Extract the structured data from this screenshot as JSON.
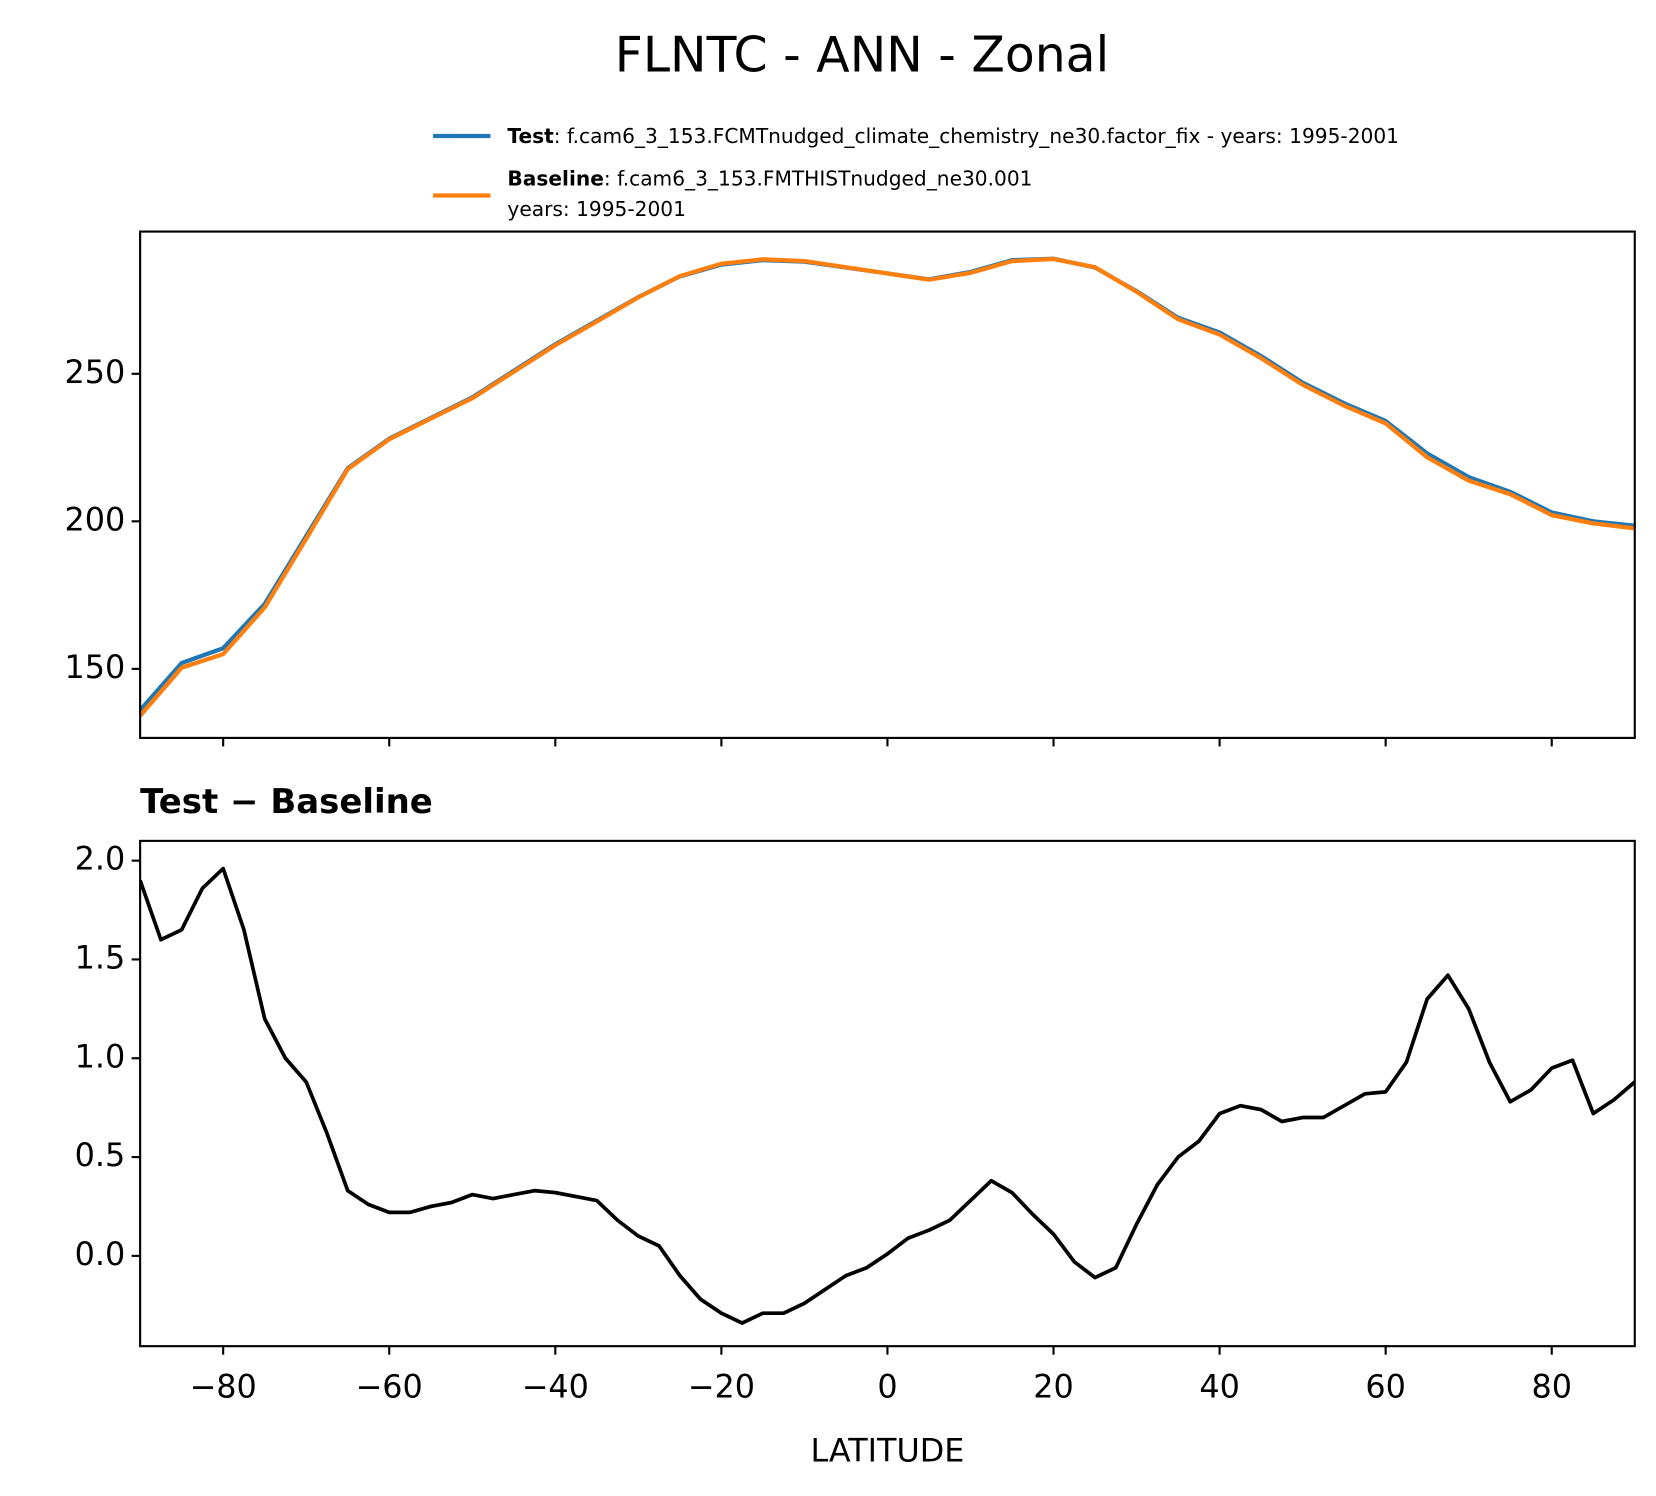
{
  "chart_data": [
    {
      "type": "line",
      "title": "FLNTC - ANN - Zonal",
      "x": [
        -90,
        -85,
        -80,
        -75,
        -70,
        -65,
        -60,
        -55,
        -50,
        -45,
        -40,
        -35,
        -30,
        -25,
        -20,
        -15,
        -10,
        -5,
        0,
        5,
        10,
        15,
        20,
        25,
        30,
        35,
        40,
        45,
        50,
        55,
        60,
        65,
        70,
        75,
        80,
        85,
        90
      ],
      "series": [
        {
          "name": "Test",
          "description": [
            ": f.cam6_3_153.FCMTnudged_climate_chemistry_ne30.factor_fix - years: 1995-2001"
          ],
          "color": "#1f77b4",
          "values": [
            136,
            152,
            157,
            172,
            195,
            218,
            228,
            235,
            242,
            251,
            260,
            268,
            276,
            283,
            287,
            288.5,
            288,
            286,
            284,
            282,
            284.5,
            288.5,
            289,
            286,
            278,
            269,
            264,
            256,
            247,
            240,
            234,
            223,
            215,
            210,
            203,
            200,
            198.5
          ]
        },
        {
          "name": "Baseline",
          "description": [
            ": f.cam6_3_153.FMTHISTnudged_ne30.001",
            "years: 1995-2001"
          ],
          "color": "#ff7f0e",
          "values": [
            134.1,
            150.4,
            155.0,
            170.8,
            194.1,
            217.7,
            227.8,
            234.8,
            241.7,
            250.7,
            259.7,
            267.7,
            275.9,
            283.1,
            287.3,
            288.8,
            288.2,
            286.1,
            284.0,
            281.9,
            284.2,
            288.2,
            288.9,
            286.1,
            277.8,
            268.5,
            263.3,
            255.3,
            246.3,
            239.2,
            233.2,
            221.7,
            213.8,
            209.2,
            202.1,
            199.3,
            197.6
          ]
        }
      ],
      "xlim": [
        -90,
        90
      ],
      "xticks": [
        -80,
        -60,
        -40,
        -20,
        0,
        20,
        40,
        60,
        80
      ],
      "ylim": [
        126.6,
        298.2
      ],
      "yticks": [
        150,
        200,
        250
      ]
    },
    {
      "type": "line",
      "subtitle": "Test − Baseline",
      "xlabel": "LATITUDE",
      "color": "#000000",
      "x": [
        -90,
        -87.5,
        -85,
        -82.5,
        -80,
        -77.5,
        -75,
        -72.5,
        -70,
        -67.5,
        -65,
        -62.5,
        -60,
        -57.5,
        -55,
        -52.5,
        -50,
        -47.5,
        -45,
        -42.5,
        -40,
        -37.5,
        -35,
        -32.5,
        -30,
        -27.5,
        -25,
        -22.5,
        -20,
        -17.5,
        -15,
        -12.5,
        -10,
        -7.5,
        -5,
        -2.5,
        0,
        2.5,
        5,
        7.5,
        10,
        12.5,
        15,
        17.5,
        20,
        22.5,
        25,
        27.5,
        30,
        32.5,
        35,
        37.5,
        40,
        42.5,
        45,
        47.5,
        50,
        52.5,
        55,
        57.5,
        60,
        62.5,
        65,
        67.5,
        70,
        72.5,
        75,
        77.5,
        80,
        82.5,
        85,
        87.5,
        90
      ],
      "values": [
        1.9,
        1.6,
        1.65,
        1.86,
        1.96,
        1.65,
        1.2,
        1.0,
        0.88,
        0.62,
        0.33,
        0.26,
        0.22,
        0.22,
        0.25,
        0.27,
        0.31,
        0.29,
        0.31,
        0.33,
        0.32,
        0.3,
        0.28,
        0.18,
        0.1,
        0.05,
        -0.1,
        -0.22,
        -0.29,
        -0.34,
        -0.29,
        -0.29,
        -0.24,
        -0.17,
        -0.1,
        -0.06,
        0.01,
        0.09,
        0.13,
        0.18,
        0.28,
        0.38,
        0.32,
        0.21,
        0.11,
        -0.03,
        -0.11,
        -0.06,
        0.16,
        0.36,
        0.5,
        0.58,
        0.72,
        0.76,
        0.74,
        0.68,
        0.7,
        0.7,
        0.76,
        0.82,
        0.83,
        0.98,
        1.3,
        1.42,
        1.25,
        0.98,
        0.78,
        0.84,
        0.95,
        0.99,
        0.72,
        0.79,
        0.88
      ],
      "xlim": [
        -90,
        90
      ],
      "xticks": [
        {
          "value": -80,
          "label": "−80"
        },
        {
          "value": -60,
          "label": "−60"
        },
        {
          "value": -40,
          "label": "−40"
        },
        {
          "value": -20,
          "label": "−20"
        },
        0,
        20,
        40,
        60,
        80
      ],
      "ylim": [
        -0.457,
        2.1
      ],
      "yticks": [
        {
          "value": 0,
          "label": "0.0"
        },
        0.5,
        {
          "value": 1,
          "label": "1.0"
        },
        1.5,
        {
          "value": 2,
          "label": "2.0"
        }
      ]
    }
  ]
}
